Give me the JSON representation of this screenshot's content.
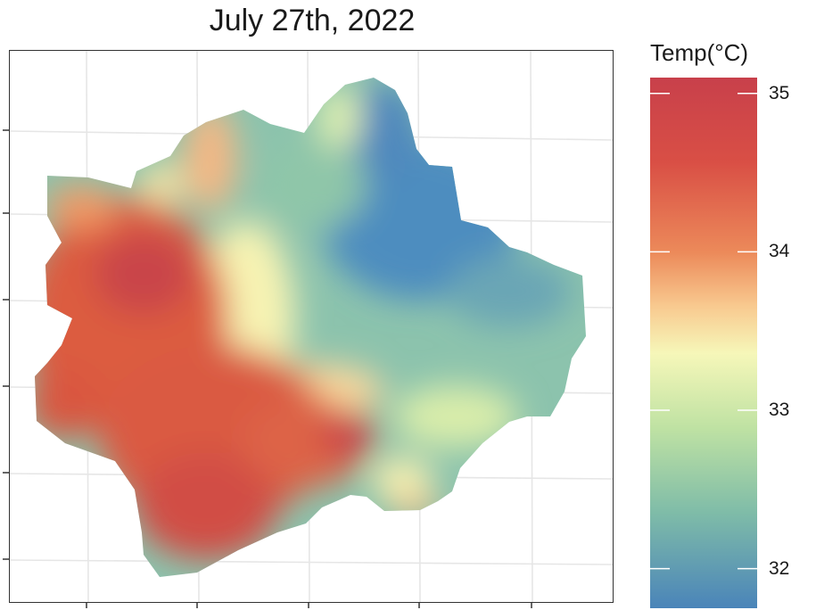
{
  "title": "July 27th, 2022",
  "legend": {
    "title": "Temp(°C)",
    "min": 31.75,
    "max": 35.1,
    "breaks": [
      {
        "value": 35,
        "label": "35"
      },
      {
        "value": 34,
        "label": "34"
      },
      {
        "value": 33,
        "label": "33"
      },
      {
        "value": 32,
        "label": "32"
      }
    ],
    "palette": [
      "#4a84b9",
      "#7fbca8",
      "#bde2a4",
      "#f6f7b9",
      "#f8c089",
      "#e57a4f",
      "#d04c4a",
      "#c8404b"
    ]
  },
  "map": {
    "grid": "on",
    "hot_zone_color": "#d9573f",
    "cool_zone_color": "#4e8dbf",
    "transition_color": "#f7f3b2"
  }
}
